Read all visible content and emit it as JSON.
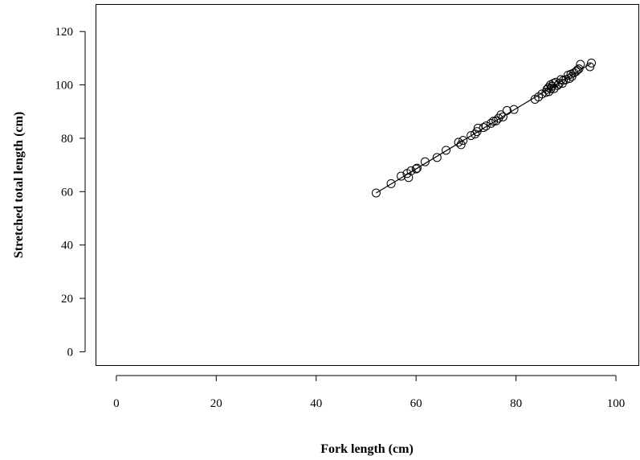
{
  "chart_data": {
    "type": "scatter",
    "title": "",
    "xlabel": "Fork length (cm)",
    "ylabel": "Stretched total length (cm)",
    "xlim": [
      -4,
      104.5
    ],
    "ylim": [
      -5,
      130
    ],
    "xticks": [
      0,
      20,
      40,
      60,
      80,
      100
    ],
    "yticks": [
      0,
      20,
      40,
      60,
      80,
      100,
      120
    ],
    "grid": false,
    "box": true,
    "marker": "open-circle",
    "fit_line": {
      "x": [
        52,
        95
      ],
      "y": [
        59.5,
        108.0
      ]
    },
    "points": [
      [
        52.0,
        59.5
      ],
      [
        55.0,
        63.0
      ],
      [
        57.0,
        65.8
      ],
      [
        58.2,
        66.8
      ],
      [
        58.5,
        65.3
      ],
      [
        59.0,
        67.8
      ],
      [
        60.0,
        68.5
      ],
      [
        60.2,
        68.8
      ],
      [
        61.8,
        71.2
      ],
      [
        64.2,
        72.8
      ],
      [
        66.0,
        75.5
      ],
      [
        68.5,
        78.5
      ],
      [
        69.0,
        77.6
      ],
      [
        69.4,
        79.2
      ],
      [
        71.0,
        81.0
      ],
      [
        71.8,
        81.6
      ],
      [
        72.2,
        82.5
      ],
      [
        72.4,
        83.8
      ],
      [
        73.5,
        84.0
      ],
      [
        74.0,
        84.6
      ],
      [
        75.0,
        85.6
      ],
      [
        75.5,
        86.4
      ],
      [
        76.0,
        86.5
      ],
      [
        76.5,
        87.5
      ],
      [
        77.0,
        88.8
      ],
      [
        77.4,
        88.0
      ],
      [
        78.2,
        90.4
      ],
      [
        79.6,
        90.8
      ],
      [
        83.8,
        94.6
      ],
      [
        84.5,
        95.5
      ],
      [
        85.2,
        96.6
      ],
      [
        86.0,
        97.2
      ],
      [
        86.2,
        98.3
      ],
      [
        86.5,
        99.0
      ],
      [
        86.6,
        97.5
      ],
      [
        86.9,
        100.0
      ],
      [
        87.0,
        98.6
      ],
      [
        87.2,
        99.5
      ],
      [
        87.5,
        100.6
      ],
      [
        87.6,
        98.6
      ],
      [
        88.0,
        101.0
      ],
      [
        88.3,
        99.8
      ],
      [
        88.6,
        100.4
      ],
      [
        89.0,
        102.0
      ],
      [
        89.3,
        100.6
      ],
      [
        89.5,
        101.7
      ],
      [
        90.0,
        102.0
      ],
      [
        90.4,
        103.6
      ],
      [
        90.7,
        102.4
      ],
      [
        91.0,
        104.0
      ],
      [
        91.2,
        103.2
      ],
      [
        91.6,
        104.5
      ],
      [
        92.0,
        105.0
      ],
      [
        92.3,
        105.6
      ],
      [
        92.6,
        106.0
      ],
      [
        92.9,
        107.7
      ],
      [
        94.8,
        106.8
      ],
      [
        95.1,
        108.2
      ]
    ]
  }
}
